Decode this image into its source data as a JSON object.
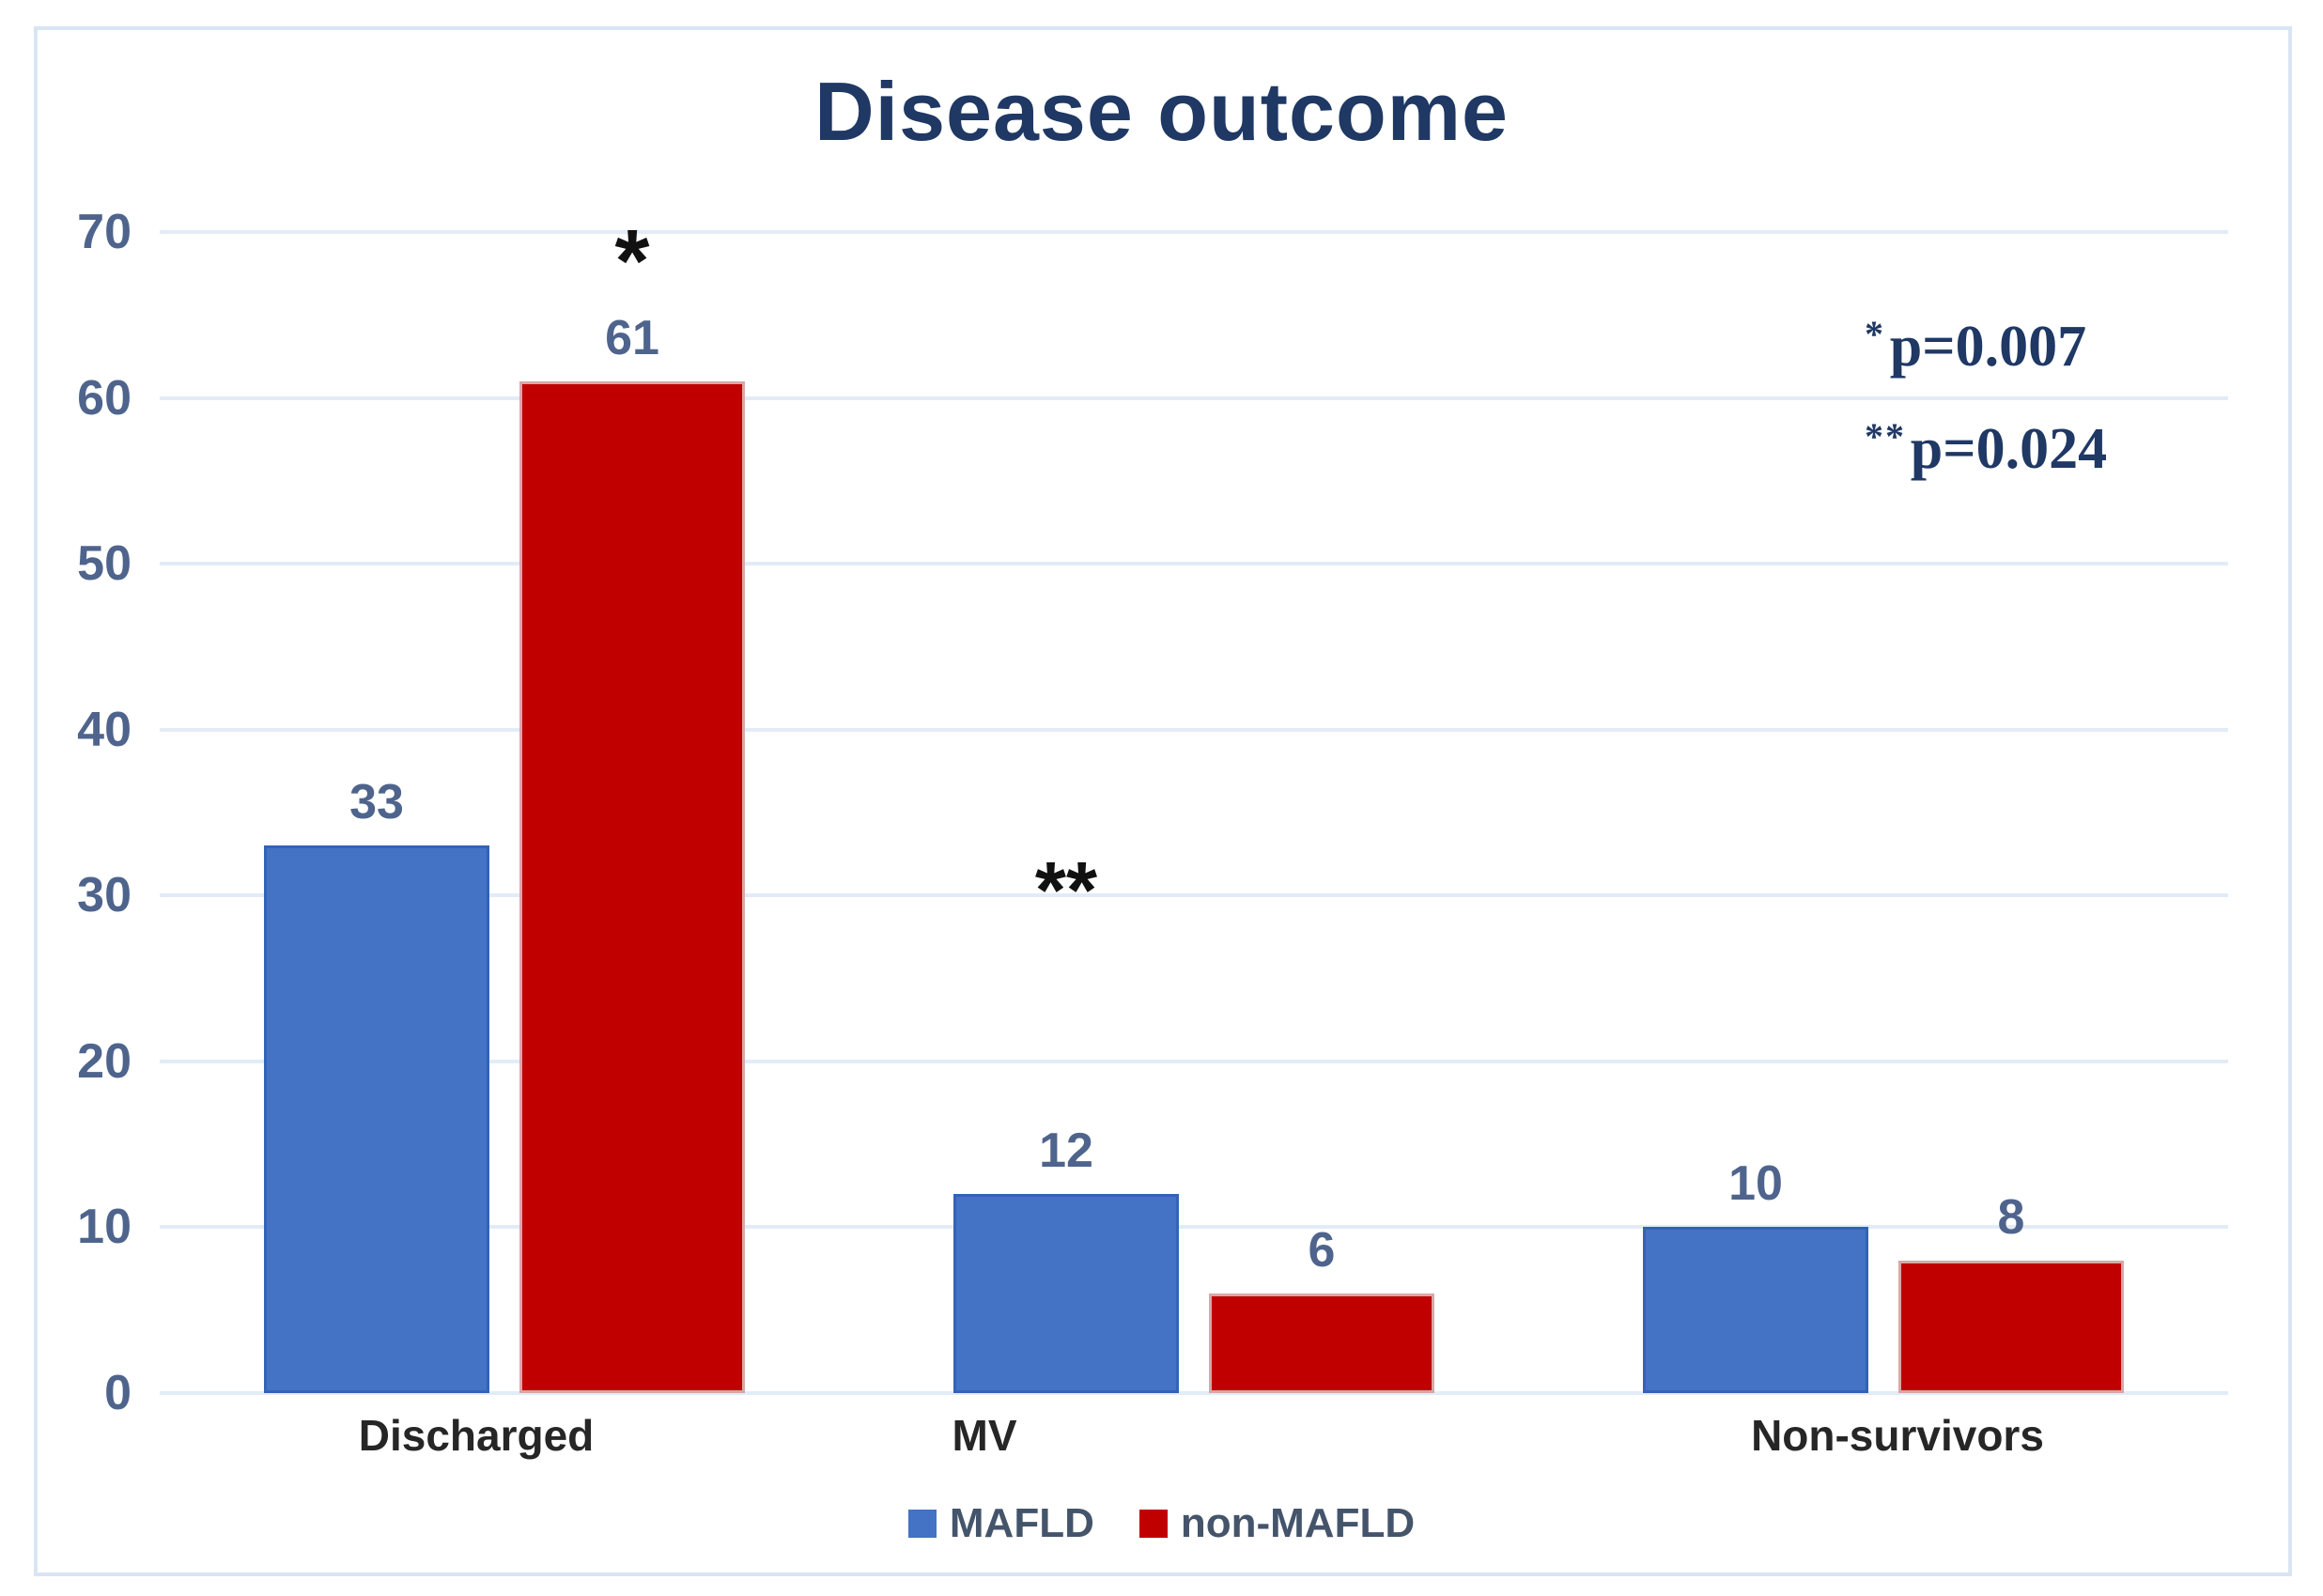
{
  "figure": {
    "title": "Disease outcome"
  },
  "colors": {
    "title_text": "#1f3864",
    "tick_label": "#4f648c",
    "data_label": "#4f648c",
    "category_label": "#262626",
    "legend_text": "#44546a",
    "annotation_text": "#1f3864",
    "significance_star": "#111111",
    "gridline": "#e2ecf7",
    "frame_border": "#d9e5f3",
    "mafld_blue": "#4472c4",
    "non_mafld_red": "#c00000"
  },
  "annotations": {
    "p_values": [
      {
        "marker": "*",
        "text": "p=0.007"
      },
      {
        "marker": "**",
        "text": "p=0.024"
      }
    ]
  },
  "chart_data": {
    "type": "bar",
    "title": "Disease outcome",
    "categories": [
      "Discharged",
      "MV",
      "Non-survivors"
    ],
    "series": [
      {
        "name": "MAFLD",
        "color": "#4472c4",
        "border_color": "#3363b7",
        "values": [
          33,
          12,
          10
        ]
      },
      {
        "name": "non-MAFLD",
        "color": "#c00000",
        "border_color": "#d8a7a7",
        "values": [
          61,
          6,
          8
        ]
      }
    ],
    "xlabel": "",
    "ylabel": "",
    "ylim": [
      0,
      70
    ],
    "y_ticks": [
      0,
      10,
      20,
      30,
      40,
      50,
      60,
      70
    ],
    "grid": true,
    "legend_position": "bottom",
    "significance": [
      {
        "label": "*",
        "category": "Discharged",
        "series": "non-MAFLD",
        "y_value": 69
      },
      {
        "label": "**",
        "category": "MV",
        "series": "MAFLD",
        "y_value": 31
      }
    ]
  }
}
